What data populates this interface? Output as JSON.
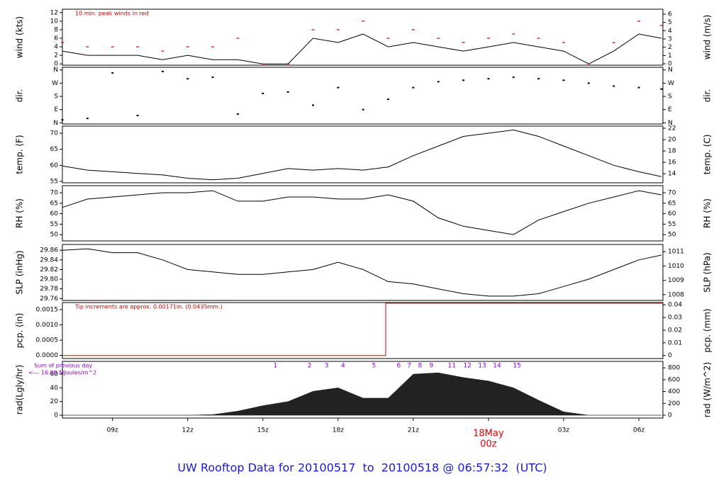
{
  "title": "UW Rooftop Data for 20100517  to  20100518 @ 06:57:32  (UTC)",
  "chart_data": [
    {
      "type": "line",
      "ylabel": "wind (kts)",
      "y2label": "wind (m/s)",
      "notes": [
        "10 min. peak winds in red"
      ],
      "note_color": "#cc0000",
      "x": [
        7,
        8,
        9,
        10,
        11,
        12,
        13,
        14,
        15,
        16,
        17,
        18,
        19,
        20,
        21,
        22,
        23,
        24,
        25,
        26,
        27,
        28,
        29,
        30,
        30.9
      ],
      "series": [
        {
          "color": "#000000",
          "values": [
            3,
            2,
            2,
            2,
            1,
            2,
            1,
            1,
            0,
            0,
            6,
            5,
            7,
            4,
            5,
            4,
            3,
            4,
            5,
            4,
            3,
            0,
            3,
            7,
            6
          ]
        },
        {
          "color": "#cc0000",
          "points": true,
          "values": [
            5,
            4,
            4,
            4,
            3,
            4,
            4,
            6,
            0,
            0,
            8,
            8,
            10,
            6,
            8,
            6,
            5,
            6,
            7,
            6,
            5,
            0,
            5,
            10,
            9
          ]
        }
      ],
      "xlim": [
        7,
        30.96
      ],
      "ylim": [
        -0.3,
        12.8
      ],
      "yticks": [
        0,
        2,
        4,
        6,
        8,
        10,
        12
      ],
      "y2lim": [
        -0.17,
        6.6
      ],
      "y2ticks": [
        0,
        1,
        2,
        3,
        4,
        5,
        6
      ]
    },
    {
      "type": "scatter",
      "ylabel": "dir.",
      "y2label": "dir.",
      "color": "#000000",
      "x": [
        7,
        8,
        9,
        10,
        11,
        12,
        13,
        14,
        15,
        16,
        17,
        18,
        19,
        20,
        21,
        22,
        23,
        24,
        25,
        26,
        27,
        28,
        29,
        30,
        30.9
      ],
      "values": [
        20,
        30,
        340,
        50,
        350,
        300,
        310,
        60,
        200,
        210,
        120,
        240,
        90,
        160,
        240,
        280,
        290,
        300,
        310,
        300,
        290,
        270,
        250,
        240,
        230
      ],
      "xlim": [
        7,
        30.96
      ],
      "ylim": [
        -8,
        378
      ],
      "yticks": [
        {
          "value": 0,
          "label": "N"
        },
        {
          "value": 90,
          "label": "E"
        },
        {
          "value": 180,
          "label": "S"
        },
        {
          "value": 270,
          "label": "W"
        },
        {
          "value": 360,
          "label": "N"
        }
      ],
      "y2lim": [
        -8,
        378
      ],
      "y2ticks": [
        {
          "value": 0,
          "label": "N"
        },
        {
          "value": 90,
          "label": "E"
        },
        {
          "value": 180,
          "label": "S"
        },
        {
          "value": 270,
          "label": "W"
        },
        {
          "value": 360,
          "label": "N"
        }
      ]
    },
    {
      "type": "line",
      "ylabel": "temp. (F)",
      "y2label": "temp. (C)",
      "color": "#000000",
      "x": [
        7,
        8,
        9,
        10,
        11,
        12,
        13,
        14,
        15,
        16,
        17,
        18,
        19,
        20,
        21,
        22,
        23,
        24,
        25,
        26,
        27,
        28,
        29,
        30,
        30.9
      ],
      "values": [
        59.8,
        58.5,
        58,
        57.5,
        57,
        56,
        55.5,
        56,
        57.5,
        59,
        58.5,
        59,
        58.5,
        59.5,
        63,
        66,
        69,
        70,
        71,
        69,
        66,
        63,
        60,
        58,
        56.5
      ],
      "xlim": [
        7,
        30.96
      ],
      "ylim": [
        54.56,
        72.2
      ],
      "yticks": [
        55,
        60,
        65,
        70
      ],
      "y2lim": [
        12.4,
        22.375
      ],
      "y2ticks": [
        14,
        16,
        18,
        20,
        22
      ]
    },
    {
      "type": "line",
      "ylabel": "RH (%)",
      "y2label": "RH (%)",
      "color": "#000000",
      "x": [
        7,
        8,
        9,
        10,
        11,
        12,
        13,
        14,
        15,
        16,
        17,
        18,
        19,
        20,
        21,
        22,
        23,
        24,
        25,
        26,
        27,
        28,
        29,
        30,
        30.9
      ],
      "values": [
        63,
        67,
        68,
        69,
        70,
        70,
        71,
        66,
        66,
        68,
        68,
        67,
        67,
        69,
        66,
        58,
        54,
        52,
        50,
        57,
        61,
        65,
        68,
        71,
        69
      ],
      "xlim": [
        7,
        30.96
      ],
      "ylim": [
        47,
        73.4
      ],
      "yticks": [
        50,
        55,
        60,
        65,
        70
      ],
      "y2lim": [
        47,
        73.4
      ],
      "y2ticks": [
        50,
        55,
        60,
        65,
        70
      ]
    },
    {
      "type": "line",
      "ylabel": "SLP (inHg)",
      "y2label": "SLP (hPa)",
      "color": "#000000",
      "x": [
        7,
        8,
        9,
        10,
        11,
        12,
        13,
        14,
        15,
        16,
        17,
        18,
        19,
        20,
        21,
        22,
        23,
        24,
        25,
        26,
        27,
        28,
        29,
        30,
        30.9
      ],
      "values": [
        29.86,
        29.863,
        29.855,
        29.855,
        29.84,
        29.82,
        29.815,
        29.81,
        29.81,
        29.815,
        29.82,
        29.835,
        29.82,
        29.795,
        29.79,
        29.78,
        29.77,
        29.765,
        29.765,
        29.77,
        29.785,
        29.8,
        29.82,
        29.84,
        29.85
      ],
      "xlim": [
        7,
        30.96
      ],
      "ylim": [
        29.756,
        29.872
      ],
      "yticks": [
        29.76,
        29.78,
        {
          "value": 29.8,
          "label": "29.80"
        },
        29.82,
        29.84,
        29.86
      ],
      "y2lim": [
        1007.6,
        1011.5
      ],
      "y2ticks": [
        1008,
        1009,
        1010,
        1011
      ]
    },
    {
      "type": "line",
      "ylabel": "pcp. (in)",
      "y2label": "pcp. (mm)",
      "color": "#cc0000",
      "notes": [
        "Tip increments are approx. 0.00171in. (0.0435mm.)"
      ],
      "note_color": "#cc0000",
      "x": [
        7,
        19.9,
        19.9,
        30.96
      ],
      "values": [
        0,
        0,
        0.00171,
        0.00171
      ],
      "xlim": [
        7,
        30.96
      ],
      "ylim": [
        -0.0001,
        0.00173
      ],
      "yticks": [
        {
          "value": 0,
          "label": "0.0000"
        },
        {
          "value": 0.0005,
          "label": "0.0005"
        },
        {
          "value": 0.001,
          "label": "0.0010"
        },
        {
          "value": 0.0015,
          "label": "0.0015"
        }
      ],
      "y2lim": [
        -0.0024,
        0.0418
      ],
      "y2ticks": [
        0,
        0.01,
        0.02,
        0.03,
        0.04
      ]
    },
    {
      "type": "area",
      "ylabel": "rad(Lgly/hr)",
      "y2label": "rad (W/m^2)",
      "color": "#222222",
      "notes": [
        "Sum of previous day",
        "<--- 16.66 MJoules/m^2"
      ],
      "note_color": "#9400d3",
      "hour_marks": {
        "x": [
          15.5,
          16.86,
          17.54,
          18.2,
          19.43,
          20.42,
          20.84,
          21.27,
          21.72,
          22.54,
          23.16,
          23.75,
          24.34,
          25.14
        ],
        "labels": [
          "1",
          "2",
          "3",
          "4",
          "5",
          "6",
          "7",
          "8",
          "9",
          "11",
          "12",
          "13",
          "14",
          "15"
        ]
      },
      "x": [
        7,
        8,
        9,
        10,
        11,
        12,
        13,
        14,
        15,
        16,
        17,
        18,
        19,
        20,
        21,
        22,
        23,
        24,
        25,
        26,
        27,
        28,
        29,
        30,
        30.9
      ],
      "values": [
        0,
        0,
        0,
        0,
        0,
        0,
        1,
        6,
        14,
        20,
        35,
        40,
        25,
        25,
        60,
        62,
        55,
        50,
        40,
        22,
        5,
        0,
        0,
        0,
        0
      ],
      "xlim": [
        7,
        30.96
      ],
      "ylim": [
        -4.1,
        78.6
      ],
      "yticks": [
        0,
        20,
        40,
        60
      ],
      "y2lim": [
        -48,
        909
      ],
      "y2ticks": [
        0,
        200,
        400,
        600,
        800
      ],
      "xticks": [
        {
          "value": 9,
          "label": "09z"
        },
        {
          "value": 12,
          "label": "12z"
        },
        {
          "value": 15,
          "label": "15z"
        },
        {
          "value": 18,
          "label": "18z"
        },
        {
          "value": 21,
          "label": "21z"
        },
        {
          "value": 24,
          "label": "00z"
        },
        {
          "value": 27,
          "label": "03z"
        },
        {
          "value": 30,
          "label": "06z"
        }
      ],
      "date_mark": {
        "x": 24,
        "label": "18May"
      }
    }
  ]
}
